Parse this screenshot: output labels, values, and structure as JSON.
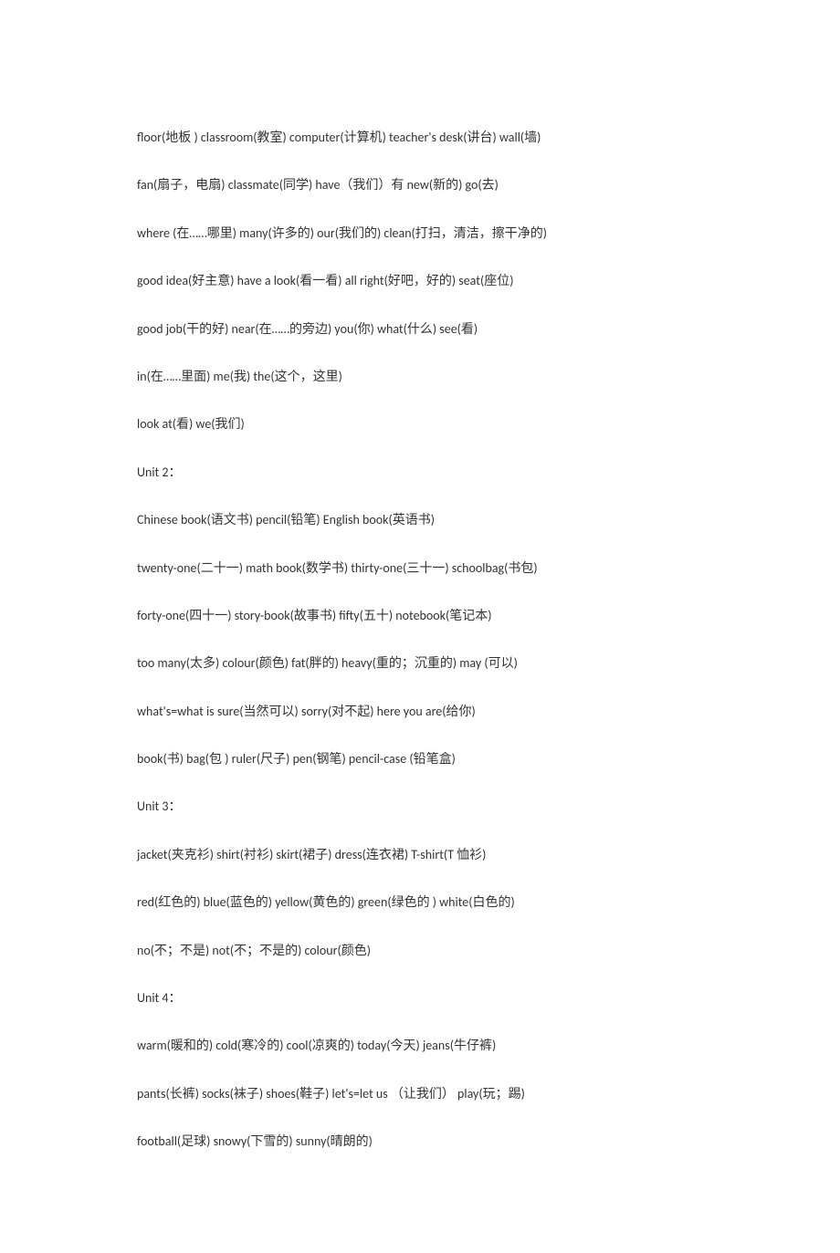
{
  "unit1_continued": [
    "floor(地板 )    classroom(教室)    computer(计算机)      teacher's desk(讲台)    wall(墙)",
    "fan(扇子，电扇)    classmate(同学)    have（我们）有      new(新的) go(去)",
    "where (在……哪里)        many(许多的)    our(我们的)       clean(打扫，清洁，擦干净的)",
    "good idea(好主意)        have a look(看一看)       all right(好吧，好的)    seat(座位)",
    "good job(干的好)            near(在……的旁边) you(你)      what(什么)       see(看)",
    "in(在……里面)         me(我)      the(这个，这里)",
    "look at(看) we(我们)"
  ],
  "unit2_header": "Unit 2：",
  "unit2_lines": [
    "Chinese book(语文书)          pencil(铅笔)         English book(英语书)",
    "twenty-one(二十一)      math book(数学书)              thirty-one(三十一)         schoolbag(书包)",
    "forty-one(四十一)       story-book(故事书)          fifty(五十)      notebook(笔记本)",
    "too many(太多)       colour(颜色)     fat(胖的)       heavy(重的；沉重的)       may (可以)",
    "what's=what is sure(当然可以)       sorry(对不起)       here you are(给你)",
    "book(书)      bag(包 )       ruler(尺子)      pen(钢笔)        pencil-case    (铅笔盒)"
  ],
  "unit3_header": "Unit 3：",
  "unit3_lines": [
    "jacket(夹克衫)      shirt(衬衫)      skirt(裙子)      dress(连衣裙)       T-shirt(T 恤衫)",
    "red(红色的)     blue(蓝色的)      yellow(黄色的)      green(绿色的  )    white(白色的)",
    "no(不；不是)        not(不；不是的)      colour(颜色)"
  ],
  "unit4_header": "Unit 4：",
  "unit4_lines": [
    "warm(暖和的)    cold(寒冷的)       cool(凉爽的)    today(今天)       jeans(牛仔裤)",
    "pants(长裤)       socks(袜子)    shoes(鞋子) let's=let us  （让我们）     play(玩；踢)",
    "football(足球)         snowy(下雪的)             sunny(晴朗的)"
  ]
}
